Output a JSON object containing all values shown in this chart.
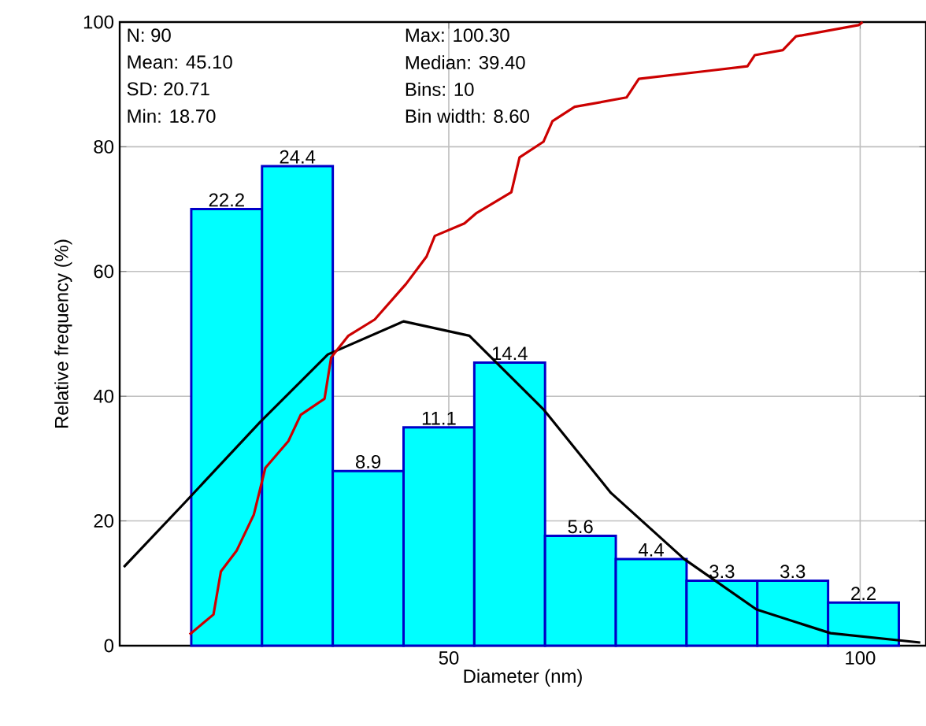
{
  "chart_data": {
    "type": "histogram",
    "xlabel": "Diameter (nm)",
    "ylabel": "Relative frequency (%)",
    "bins": [
      18.7,
      27.3,
      35.9,
      44.5,
      53.1,
      61.7,
      70.3,
      78.9,
      87.5,
      96.1,
      104.7
    ],
    "values": [
      70,
      76.9,
      28,
      35,
      45.4,
      17.6,
      13.9,
      10.4,
      10.4,
      6.9
    ],
    "color": "#00ffff",
    "series": [
      {
        "type": "line",
        "color": "#000000",
        "x": [
          10.5,
          18.1,
          27.1,
          35.3,
          44.5,
          52.5,
          61.5,
          69.7,
          78.6,
          87.4,
          96.4,
          107.3
        ],
        "values": [
          12.6,
          23.2,
          35.9,
          46.7,
          52,
          49.7,
          37.9,
          24.5,
          13.9,
          5.8,
          2,
          0.5
        ]
      },
      {
        "type": "line",
        "color": "#cc0000",
        "x": [
          18.5,
          21.4,
          22.3,
          24.2,
          26.3,
          27.7,
          30.5,
          32,
          34.9,
          35.7,
          37.8,
          41,
          44.8,
          47.3,
          48.3,
          51.9,
          53.4,
          57.6,
          58.6,
          61.5,
          62.6,
          65.3,
          71.6,
          73.1,
          81.7,
          86.3,
          87.2,
          90.6,
          92.2,
          99.8,
          100.3
        ],
        "values": [
          1.8,
          5,
          11.9,
          15.2,
          21,
          28.5,
          32.8,
          37,
          39.6,
          46.2,
          49.7,
          52.3,
          58,
          62.4,
          65.7,
          67.7,
          69.4,
          72.7,
          78.3,
          80.8,
          84.1,
          86.4,
          87.9,
          90.9,
          92.2,
          92.9,
          94.7,
          95.5,
          97.7,
          99.5,
          100
        ]
      }
    ],
    "xlim": [
      10,
      108
    ],
    "ylim": [
      0,
      100
    ],
    "xticks": [
      50,
      100
    ],
    "yticks": [
      0,
      20,
      40,
      60,
      80,
      100
    ],
    "grid": true,
    "line_style": "solid",
    "annotations": [
      "N: 90",
      "Mean: 45.10",
      "SD: 20.71",
      "Min: 18.70",
      "Max: 100.30",
      "Median: 39.40",
      "Bins: 10",
      "Bin width: 8.60",
      {
        "text": "22.2",
        "x": 23,
        "y": 70
      },
      {
        "text": "24.4",
        "x": 31.6,
        "y": 76.9
      },
      {
        "text": "8.9",
        "x": 40.2,
        "y": 28
      },
      {
        "text": "11.1",
        "x": 48.8,
        "y": 35
      },
      {
        "text": "14.4",
        "x": 57.4,
        "y": 45.4
      },
      {
        "text": "5.6",
        "x": 66,
        "y": 17.6
      },
      {
        "text": "4.4",
        "x": 74.6,
        "y": 13.9
      },
      {
        "text": "3.3",
        "x": 83.2,
        "y": 10.4
      },
      {
        "text": "3.3",
        "x": 91.8,
        "y": 10.4
      },
      {
        "text": "2.2",
        "x": 100.4,
        "y": 6.9
      }
    ]
  }
}
